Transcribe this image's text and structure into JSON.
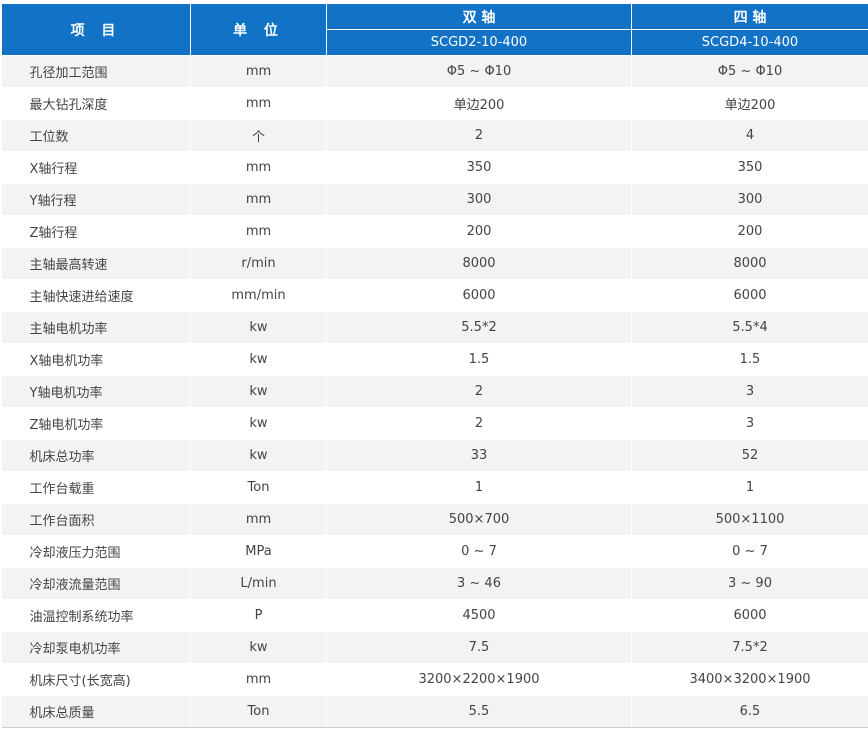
{
  "header": {
    "item_label": "项 目",
    "unit_label": "单 位",
    "two_axis_label": "双 轴",
    "two_axis_model": "SCGD2-10-400",
    "four_axis_label": "四 轴",
    "four_axis_model": "SCGD4-10-400"
  },
  "rows": [
    {
      "name": "孔径加工范围",
      "unit": "mm",
      "two": "Φ5 ~ Φ10",
      "four": "Φ5 ~ Φ10"
    },
    {
      "name": "最大钻孔深度",
      "unit": "mm",
      "two": "单边200",
      "four": "单边200"
    },
    {
      "name": "工位数",
      "unit": "个",
      "two": "2",
      "four": "4"
    },
    {
      "name": "X轴行程",
      "unit": "mm",
      "two": "350",
      "four": "350"
    },
    {
      "name": "Y轴行程",
      "unit": "mm",
      "two": "300",
      "four": "300"
    },
    {
      "name": "Z轴行程",
      "unit": "mm",
      "two": "200",
      "four": "200"
    },
    {
      "name": "主轴最高转速",
      "unit": "r/min",
      "two": "8000",
      "four": "8000"
    },
    {
      "name": "主轴快速进给速度",
      "unit": "mm/min",
      "two": "6000",
      "four": "6000"
    },
    {
      "name": "主轴电机功率",
      "unit": "kw",
      "two": "5.5*2",
      "four": "5.5*4"
    },
    {
      "name": "X轴电机功率",
      "unit": "kw",
      "two": "1.5",
      "four": "1.5"
    },
    {
      "name": "Y轴电机功率",
      "unit": "kw",
      "two": "2",
      "four": "3"
    },
    {
      "name": "Z轴电机功率",
      "unit": "kw",
      "two": "2",
      "four": "3"
    },
    {
      "name": "机床总功率",
      "unit": "kw",
      "two": "33",
      "four": "52"
    },
    {
      "name": "工作台载重",
      "unit": "Ton",
      "two": "1",
      "four": "1"
    },
    {
      "name": "工作台面积",
      "unit": "mm",
      "two": "500×700",
      "four": "500×1100"
    },
    {
      "name": "冷却液压力范围",
      "unit": "MPa",
      "two": "0 ~ 7",
      "four": "0 ~ 7"
    },
    {
      "name": "冷却液流量范围",
      "unit": "L/min",
      "two": "3 ~ 46",
      "four": "3 ~ 90"
    },
    {
      "name": "油温控制系统功率",
      "unit": "P",
      "two": "4500",
      "four": "6000"
    },
    {
      "name": "冷却泵电机功率",
      "unit": "kw",
      "two": "7.5",
      "four": "7.5*2"
    },
    {
      "name": "机床尺寸(长宽高)",
      "unit": "mm",
      "two": "3200×2200×1900",
      "four": "3400×3200×1900"
    },
    {
      "name": "机床总质量",
      "unit": "Ton",
      "two": "5.5",
      "four": "6.5"
    }
  ]
}
